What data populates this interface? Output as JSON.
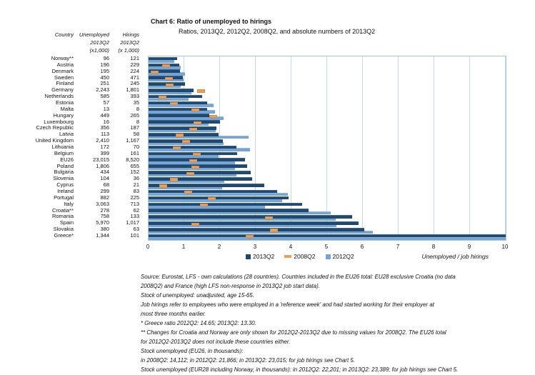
{
  "title": {
    "prefix_and_main": "Chart 6: Ratio of unemployed to hirings",
    "subtitle": "Ratios, 2013Q2, 2012Q2, 2008Q2, and absolute numbers of 2013Q2"
  },
  "table": {
    "headers": {
      "col1": "Country",
      "col2": "Unemployed",
      "col3": "Hirings",
      "col2_period": "2013Q2",
      "col3_period": "2013Q2",
      "col2_unit": "(x1,000)",
      "col3_unit": "(x 1,000)"
    },
    "rows": [
      {
        "country": "Norway**",
        "unemployed": "96",
        "hirings": "121"
      },
      {
        "country": "Austria",
        "unemployed": "196",
        "hirings": "229"
      },
      {
        "country": "Denmark",
        "unemployed": "195",
        "hirings": "224"
      },
      {
        "country": "Sweden",
        "unemployed": "450",
        "hirings": "471"
      },
      {
        "country": "Finland",
        "unemployed": "251",
        "hirings": "245"
      },
      {
        "country": "Germany",
        "unemployed": "2,243",
        "hirings": "1,801"
      },
      {
        "country": "Netherlands",
        "unemployed": "585",
        "hirings": "393"
      },
      {
        "country": "Estonia",
        "unemployed": "57",
        "hirings": "35"
      },
      {
        "country": "Malta",
        "unemployed": "13",
        "hirings": "8"
      },
      {
        "country": "Hungary",
        "unemployed": "449",
        "hirings": "265"
      },
      {
        "country": "Luxembourg",
        "unemployed": "16",
        "hirings": "8"
      },
      {
        "country": "Czech Republic",
        "unemployed": "356",
        "hirings": "187"
      },
      {
        "country": "Latvia",
        "unemployed": "113",
        "hirings": "58"
      },
      {
        "country": "United Kingdom",
        "unemployed": "2,410",
        "hirings": "1,167"
      },
      {
        "country": "Lithuania",
        "unemployed": "172",
        "hirings": "70"
      },
      {
        "country": "Belgium",
        "unemployed": "399",
        "hirings": "161"
      },
      {
        "country": "EU26",
        "unemployed": "23,015",
        "hirings": "8,520"
      },
      {
        "country": "Poland",
        "unemployed": "1,806",
        "hirings": "655"
      },
      {
        "country": "Bulgaria",
        "unemployed": "434",
        "hirings": "152"
      },
      {
        "country": "Slovenia",
        "unemployed": "104",
        "hirings": "36"
      },
      {
        "country": "Cyprus",
        "unemployed": "68",
        "hirings": "21"
      },
      {
        "country": "Ireland",
        "unemployed": "299",
        "hirings": "83"
      },
      {
        "country": "Portugal",
        "unemployed": "882",
        "hirings": "225"
      },
      {
        "country": "Italy",
        "unemployed": "3,063",
        "hirings": "713"
      },
      {
        "country": "Croatia**",
        "unemployed": "278",
        "hirings": "62"
      },
      {
        "country": "Romania",
        "unemployed": "758",
        "hirings": "133"
      },
      {
        "country": "Spain",
        "unemployed": "5,970",
        "hirings": "1,017"
      },
      {
        "country": "Slovakia",
        "unemployed": "380",
        "hirings": "63"
      },
      {
        "country": "Greece*",
        "unemployed": "1,344",
        "hirings": "101"
      }
    ]
  },
  "chart_data": {
    "type": "bar",
    "orientation": "horizontal",
    "title": "Chart 6: Ratio of unemployed to hirings",
    "subtitle": "Ratios, 2013Q2, 2012Q2, 2008Q2, and absolute numbers of 2013Q2",
    "xlabel": "Unemployed / job hirings",
    "xlim": [
      0,
      10
    ],
    "ticks": [
      "0",
      "1",
      "2",
      "3",
      "4",
      "5",
      "6",
      "7",
      "8",
      "9",
      "10"
    ],
    "grid": true,
    "legend_position": "bottom",
    "categories": [
      "Norway**",
      "Austria",
      "Denmark",
      "Sweden",
      "Finland",
      "Germany",
      "Netherlands",
      "Estonia",
      "Malta",
      "Hungary",
      "Luxembourg",
      "Czech Republic",
      "Latvia",
      "United Kingdom",
      "Lithuania",
      "Belgium",
      "EU26",
      "Poland",
      "Bulgaria",
      "Slovenia",
      "Cyprus",
      "Ireland",
      "Portugal",
      "Italy",
      "Croatia**",
      "Romania",
      "Spain",
      "Slovakia",
      "Greece*"
    ],
    "series": [
      {
        "name": "2013Q2",
        "style": "bar-dark",
        "color": "#214970",
        "values": [
          0.79,
          0.86,
          0.87,
          0.96,
          1.02,
          1.25,
          1.49,
          1.63,
          1.63,
          1.69,
          2.0,
          1.9,
          1.95,
          2.07,
          2.46,
          2.48,
          2.7,
          2.76,
          2.86,
          2.89,
          3.24,
          3.6,
          3.92,
          4.3,
          4.48,
          5.7,
          5.87,
          6.03,
          13.3
        ]
      },
      {
        "name": "2008Q2",
        "style": "dash-marker",
        "color": "#EBA05A",
        "values": [
          null,
          0.48,
          0.17,
          0.56,
          0.59,
          1.46,
          0.39,
          0.7,
          1.3,
          1.81,
          1.37,
          1.25,
          0.87,
          1.05,
          0.79,
          1.35,
          1.25,
          1.3,
          1.17,
          0.7,
          0.4,
          1.1,
          1.77,
          1.55,
          null,
          3.37,
          1.31,
          3.51,
          2.83
        ]
      },
      {
        "name": "2012Q2",
        "style": "bar-light",
        "color": "#78A4D1",
        "values": [
          0.72,
          0.89,
          1.01,
          0.97,
          0.9,
          1.19,
          1.11,
          1.81,
          1.86,
          2.09,
          1.68,
          1.87,
          2.79,
          2.1,
          2.83,
          1.95,
          2.41,
          2.41,
          2.45,
          2.11,
          2.06,
          3.89,
          3.73,
          3.26,
          5.09,
          5.23,
          5.26,
          6.28,
          14.65
        ]
      }
    ],
    "clipping_note": "Greece* bars exceed axis maximum and are clipped at 10 (see footnote: 2012Q2: 14.65; 2013Q2: 13.30)"
  },
  "notes": {
    "lines": [
      "Source: Eurostat, LFS - own calculations (28 countries). Countries included in the EU26 total: EU28 exclusive Croatia (no data",
      "2008Q2) and  France (high LFS non-response in 2013Q2 job start data).",
      "Stock of unemployed: unadjusted, age 15-65.",
      "Job hirings refer to employees who were employed in a 'reference week' and had started working for their employer at",
      "most three months earlier.",
      "* Greece ratio 2012Q2: 14.65; 2013Q2: 13.30.",
      "** Changes for Croatia and Norway are only shown for 2012Q2-2013Q2 due to missing values for 2008Q2. The EU26 total",
      "for 2012Q2-2013Q2 does not include these countries either.",
      "Stock unemployed (EU26, in thousands):",
      "in 2008Q2: 14,112; in 2012Q2: 21,866; in 2013Q2: 23,015; for job hirings see Chart 5.",
      "Stock unemployed (EUR28 including Norway, in thousands): in 2012Q2: 22,201; in 2013Q2: 23,389; for job hirings see Chart 5."
    ]
  }
}
